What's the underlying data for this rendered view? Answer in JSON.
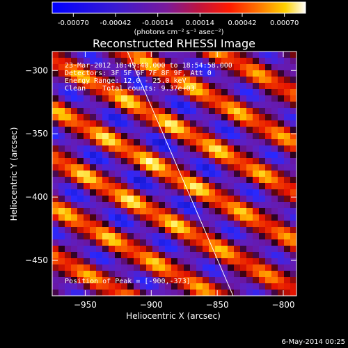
{
  "colorbar": {
    "ticks": [
      "-0.00070",
      "-0.00042",
      "-0.00014",
      "0.00014",
      "0.00042",
      "0.00070"
    ],
    "units": "(photons cm⁻² s⁻¹ asec⁻²)",
    "range": [
      -0.0007,
      0.0007
    ]
  },
  "chart_data": {
    "type": "heatmap",
    "title": "Reconstructed RHESSI Image",
    "xlabel": "Heliocentric X (arcsec)",
    "ylabel": "Heliocentric Y (arcsec)",
    "xlim": [
      -975,
      -790
    ],
    "ylim": [
      -478,
      -285
    ],
    "xticks": [
      {
        "value": -950,
        "label": "−950"
      },
      {
        "value": -900,
        "label": "−900"
      },
      {
        "value": -850,
        "label": "−850"
      },
      {
        "value": -800,
        "label": "−800"
      }
    ],
    "yticks": [
      {
        "value": -300,
        "label": "−300"
      },
      {
        "value": -350,
        "label": "−350"
      },
      {
        "value": -400,
        "label": "−400"
      },
      {
        "value": -450,
        "label": "−450"
      }
    ],
    "peak": {
      "x": -900,
      "y": -373
    },
    "limb_line": [
      {
        "x": -918,
        "y": -285
      },
      {
        "x": -838,
        "y": -478
      }
    ],
    "info_lines": [
      "23-Mar-2012 18:49:40.000 to 18:54:58.000",
      "Detectors: 3F 5F 6F 7F 8F 9F, Att 0",
      "Energy Range: 12.0 - 25.0 keV",
      "Clean    Total counts: 9.37e+03"
    ],
    "peak_label": "Position of Peak = [-900,-373]"
  },
  "footer": {
    "date": "6-May-2014 00:25"
  },
  "colors": {
    "bright": "#ffffb0",
    "cold": "#2c2cff",
    "mid": "#6a18ad"
  }
}
